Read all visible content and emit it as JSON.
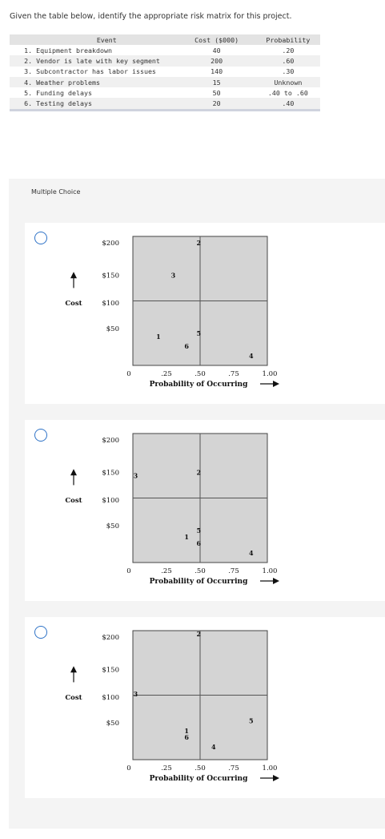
{
  "question": "Given the table below, identify the appropriate risk matrix for this project.",
  "table": {
    "headers": {
      "event": "Event",
      "cost": "Cost ($000)",
      "probability": "Probability"
    },
    "rows": [
      {
        "num": "1.",
        "event": "Equipment breakdown",
        "cost": "40",
        "probability": ".20"
      },
      {
        "num": "2.",
        "event": "Vendor is late with key segment",
        "cost": "200",
        "probability": ".60"
      },
      {
        "num": "3.",
        "event": "Subcontractor has labor issues",
        "cost": "140",
        "probability": ".30"
      },
      {
        "num": "4.",
        "event": "Weather problems",
        "cost": "15",
        "probability": "Unknown"
      },
      {
        "num": "5.",
        "event": "Funding delays",
        "cost": "50",
        "probability": ".40 to .60"
      },
      {
        "num": "6.",
        "event": "Testing delays",
        "cost": "20",
        "probability": ".40"
      }
    ]
  },
  "multiple_choice_label": "Multiple Choice",
  "chart_common": {
    "ylabel": "Cost",
    "xlabel": "Probability of Occurring",
    "y_ticks": [
      "$200",
      "$150",
      "$100",
      "$50"
    ],
    "x_ticks": [
      "0",
      ".25",
      ".50",
      ".75",
      "1.00"
    ]
  },
  "chart_data": [
    {
      "type": "scatter",
      "xlabel": "Probability of Occurring",
      "ylabel": "Cost",
      "xlim": [
        0,
        1
      ],
      "ylim": [
        0,
        200
      ],
      "points": [
        {
          "label": "1",
          "x": 0.19,
          "y": 45
        },
        {
          "label": "2",
          "x": 0.49,
          "y": 190
        },
        {
          "label": "3",
          "x": 0.3,
          "y": 140
        },
        {
          "label": "4",
          "x": 0.88,
          "y": 15
        },
        {
          "label": "5",
          "x": 0.49,
          "y": 50
        },
        {
          "label": "6",
          "x": 0.4,
          "y": 30
        }
      ]
    },
    {
      "type": "scatter",
      "xlabel": "Probability of Occurring",
      "ylabel": "Cost",
      "xlim": [
        0,
        1
      ],
      "ylim": [
        0,
        200
      ],
      "points": [
        {
          "label": "1",
          "x": 0.4,
          "y": 40
        },
        {
          "label": "2",
          "x": 0.49,
          "y": 140
        },
        {
          "label": "3",
          "x": 0.02,
          "y": 135
        },
        {
          "label": "4",
          "x": 0.88,
          "y": 15
        },
        {
          "label": "5",
          "x": 0.49,
          "y": 50
        },
        {
          "label": "6",
          "x": 0.49,
          "y": 30
        }
      ]
    },
    {
      "type": "scatter",
      "xlabel": "Probability of Occurring",
      "ylabel": "Cost",
      "xlim": [
        0,
        1
      ],
      "ylim": [
        0,
        200
      ],
      "points": [
        {
          "label": "1",
          "x": 0.4,
          "y": 45
        },
        {
          "label": "2",
          "x": 0.49,
          "y": 195
        },
        {
          "label": "3",
          "x": 0.02,
          "y": 102
        },
        {
          "label": "4",
          "x": 0.6,
          "y": 20
        },
        {
          "label": "5",
          "x": 0.88,
          "y": 60
        },
        {
          "label": "6",
          "x": 0.4,
          "y": 35
        }
      ]
    }
  ]
}
